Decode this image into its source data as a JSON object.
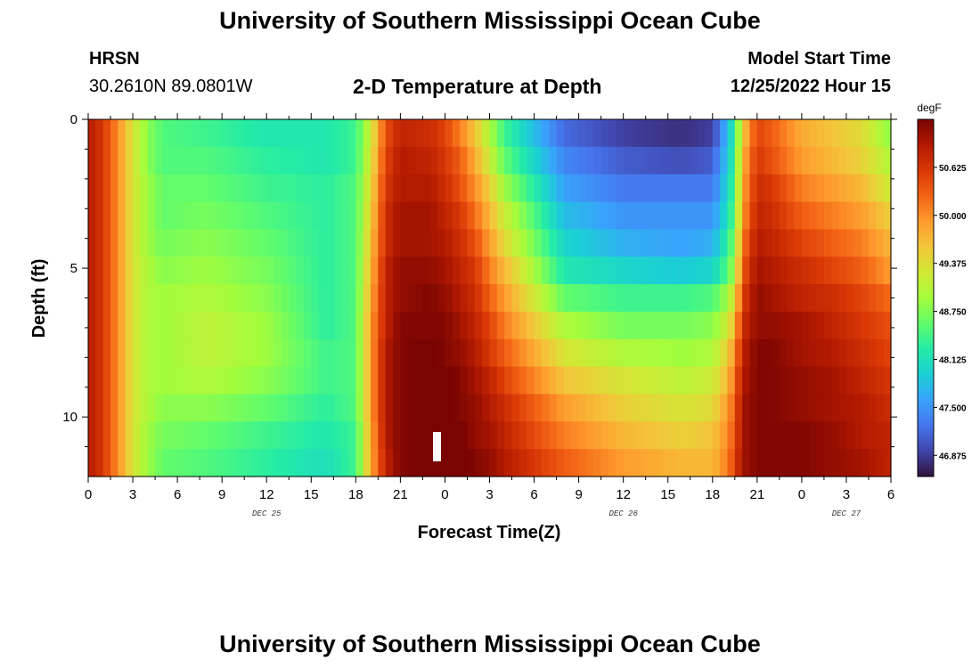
{
  "header": {
    "title": "University of Southern Mississippi Ocean Cube",
    "station": "HRSN",
    "coords": "30.2610N  89.0801W",
    "plot_title": "2-D Temperature at Depth",
    "model_start_label": "Model Start Time",
    "model_start_value": "12/25/2022 Hour 15"
  },
  "footer": {
    "title": "University of Southern Mississippi Ocean Cube"
  },
  "chart_data": {
    "type": "heatmap",
    "title": "2-D Temperature at Depth",
    "xlabel": "Forecast Time(Z)",
    "ylabel": "Depth (ft)",
    "x_ticks": [
      "0",
      "3",
      "6",
      "9",
      "12",
      "15",
      "18",
      "21",
      "0",
      "3",
      "6",
      "9",
      "12",
      "15",
      "18",
      "21",
      "0",
      "3",
      "6"
    ],
    "day_labels": [
      {
        "label": "DEC 25",
        "hour": 12
      },
      {
        "label": "DEC 26",
        "hour": 36
      },
      {
        "label": "DEC 27",
        "hour": 51
      }
    ],
    "xlim": [
      0,
      54
    ],
    "y_ticks": [
      "0",
      "5",
      "10"
    ],
    "ylim": [
      0,
      12
    ],
    "colorbar": {
      "unit": "degF",
      "ticks": [
        "50.625",
        "50.000",
        "49.375",
        "48.750",
        "48.125",
        "47.500",
        "46.875"
      ],
      "range": [
        46.6,
        51.25
      ],
      "colors": [
        "#30123b",
        "#4145ab",
        "#4675ed",
        "#39a2fc",
        "#1bcfd4",
        "#24eca6",
        "#61fc6c",
        "#a4fc3b",
        "#d1e834",
        "#f3c63a",
        "#fe9b2d",
        "#f36315",
        "#d93806",
        "#b11901",
        "#7a0402"
      ]
    },
    "depths": [
      0,
      1,
      2,
      3,
      4,
      5,
      6,
      7,
      8,
      9,
      10,
      11,
      12
    ],
    "profile_note_hours": {
      "knots": [
        0,
        1,
        2,
        3,
        4,
        5,
        8,
        12,
        16,
        18,
        19,
        20,
        21,
        23,
        24,
        25,
        26,
        27,
        28,
        32,
        36,
        40,
        42,
        43,
        43.5,
        44,
        45,
        46,
        48,
        50,
        52,
        54
      ]
    },
    "profiles": [
      [
        50.9,
        50.6,
        50.0,
        49.3,
        48.8,
        48.5,
        48.4,
        48.2,
        48.2,
        48.4,
        49.2,
        50.4,
        50.8,
        50.7,
        50.5,
        50.1,
        49.6,
        49.0,
        48.4,
        47.2,
        46.9,
        46.8,
        46.9,
        47.8,
        48.3,
        49.5,
        50.5,
        50.3,
        49.8,
        49.6,
        49.4,
        48.8
      ],
      [
        50.9,
        50.6,
        50.0,
        49.3,
        48.8,
        48.5,
        48.5,
        48.3,
        48.2,
        48.4,
        49.3,
        50.5,
        50.9,
        50.8,
        50.6,
        50.3,
        49.8,
        49.2,
        48.6,
        47.4,
        47.1,
        47.0,
        47.1,
        47.9,
        48.4,
        49.7,
        50.6,
        50.4,
        49.9,
        49.7,
        49.5,
        49.0
      ],
      [
        50.9,
        50.6,
        50.0,
        49.3,
        48.9,
        48.6,
        48.6,
        48.4,
        48.3,
        48.5,
        49.4,
        50.6,
        50.9,
        50.9,
        50.7,
        50.4,
        50.0,
        49.5,
        48.9,
        47.6,
        47.3,
        47.3,
        47.3,
        48.0,
        48.5,
        49.8,
        50.7,
        50.6,
        50.1,
        49.9,
        49.7,
        49.2
      ],
      [
        50.9,
        50.6,
        50.0,
        49.3,
        48.9,
        48.6,
        48.7,
        48.5,
        48.3,
        48.5,
        49.5,
        50.7,
        51.0,
        51.0,
        50.8,
        50.6,
        50.2,
        49.7,
        49.2,
        47.8,
        47.5,
        47.5,
        47.5,
        48.1,
        48.6,
        49.9,
        50.8,
        50.7,
        50.3,
        50.1,
        49.9,
        49.5
      ],
      [
        50.9,
        50.6,
        50.0,
        49.3,
        48.9,
        48.7,
        48.8,
        48.6,
        48.3,
        48.5,
        49.6,
        50.7,
        51.0,
        51.0,
        50.9,
        50.7,
        50.4,
        49.9,
        49.4,
        48.0,
        47.7,
        47.6,
        47.7,
        48.3,
        48.8,
        50.1,
        50.9,
        50.8,
        50.5,
        50.3,
        50.1,
        49.7
      ],
      [
        50.9,
        50.6,
        50.0,
        49.3,
        49.0,
        48.8,
        48.9,
        48.7,
        48.3,
        48.5,
        49.7,
        50.8,
        51.1,
        51.1,
        51.0,
        50.8,
        50.6,
        50.1,
        49.7,
        48.2,
        48.0,
        47.9,
        48.0,
        48.5,
        49.0,
        50.3,
        51.0,
        50.9,
        50.7,
        50.5,
        50.3,
        49.9
      ],
      [
        50.9,
        50.6,
        50.0,
        49.3,
        49.0,
        48.9,
        49.0,
        48.8,
        48.3,
        48.5,
        49.8,
        50.8,
        51.1,
        51.2,
        51.1,
        50.9,
        50.7,
        50.3,
        49.9,
        48.6,
        48.4,
        48.4,
        48.5,
        48.9,
        49.4,
        50.5,
        51.1,
        51.0,
        50.8,
        50.7,
        50.5,
        50.2
      ],
      [
        50.9,
        50.6,
        50.0,
        49.3,
        49.0,
        48.9,
        49.1,
        48.9,
        48.3,
        48.5,
        49.9,
        50.8,
        51.2,
        51.2,
        51.2,
        51.0,
        50.8,
        50.5,
        50.1,
        49.0,
        48.7,
        48.7,
        48.8,
        49.2,
        49.7,
        50.7,
        51.1,
        51.1,
        51.0,
        50.8,
        50.6,
        50.4
      ],
      [
        50.9,
        50.6,
        50.0,
        49.3,
        49.0,
        48.9,
        49.1,
        48.9,
        48.4,
        48.5,
        49.9,
        50.9,
        51.2,
        51.3,
        51.2,
        51.1,
        50.9,
        50.6,
        50.3,
        49.3,
        49.0,
        48.9,
        49.0,
        49.5,
        50.0,
        50.8,
        51.2,
        51.2,
        51.0,
        50.9,
        50.7,
        50.5
      ],
      [
        50.9,
        50.6,
        50.0,
        49.3,
        49.0,
        48.9,
        49.0,
        48.8,
        48.4,
        48.5,
        49.9,
        50.9,
        51.2,
        51.3,
        51.3,
        51.2,
        51.0,
        50.8,
        50.5,
        49.6,
        49.3,
        49.1,
        49.2,
        49.7,
        50.2,
        50.9,
        51.2,
        51.2,
        51.1,
        51.0,
        50.8,
        50.6
      ],
      [
        50.9,
        50.6,
        50.0,
        49.3,
        49.0,
        48.8,
        48.8,
        48.6,
        48.3,
        48.5,
        49.9,
        50.9,
        51.2,
        51.3,
        51.3,
        51.2,
        51.1,
        50.9,
        50.7,
        49.9,
        49.5,
        49.3,
        49.4,
        49.9,
        50.3,
        51.0,
        51.2,
        51.2,
        51.1,
        51.0,
        50.9,
        50.7
      ],
      [
        50.9,
        50.6,
        50.0,
        49.3,
        48.9,
        48.7,
        48.6,
        48.4,
        48.2,
        48.4,
        49.8,
        50.9,
        51.2,
        51.3,
        51.3,
        51.3,
        51.1,
        51.0,
        50.8,
        50.1,
        49.7,
        49.5,
        49.6,
        50.0,
        50.4,
        51.0,
        51.2,
        51.2,
        51.2,
        51.1,
        50.9,
        50.8
      ],
      [
        50.9,
        50.6,
        50.0,
        49.3,
        48.9,
        48.6,
        48.5,
        48.3,
        48.1,
        48.4,
        49.8,
        50.8,
        51.2,
        51.3,
        51.3,
        51.3,
        51.2,
        51.1,
        50.9,
        50.3,
        49.9,
        49.7,
        49.7,
        50.1,
        50.5,
        51.0,
        51.2,
        51.2,
        51.2,
        51.1,
        51.0,
        50.8
      ]
    ]
  }
}
